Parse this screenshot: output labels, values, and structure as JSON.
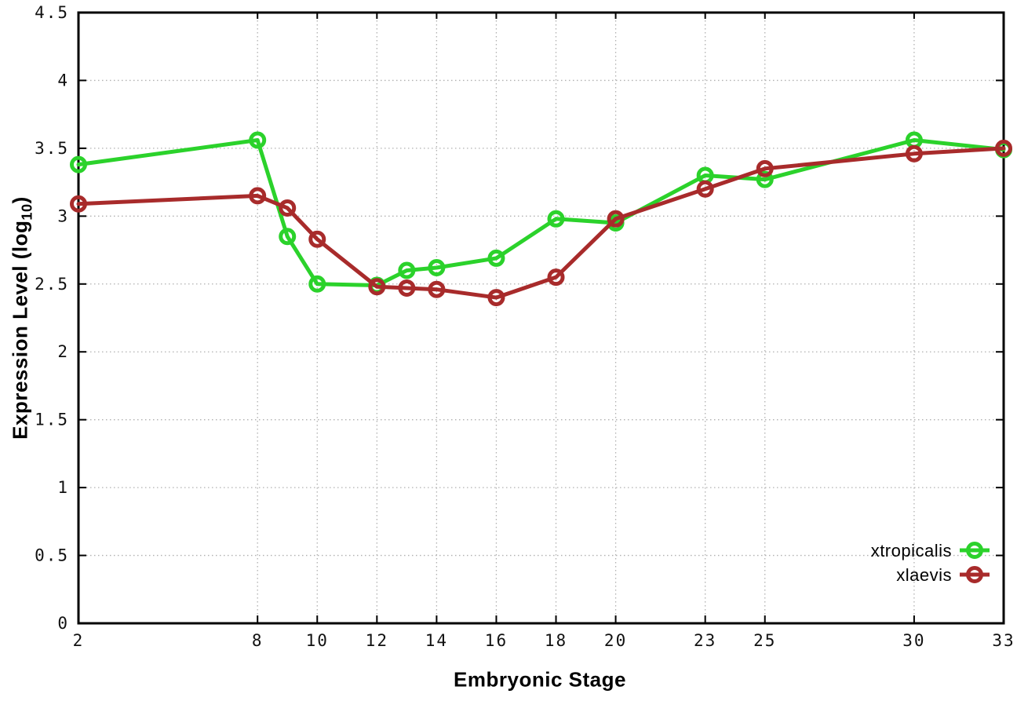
{
  "chart_data": {
    "type": "line",
    "title": "",
    "xlabel": "Embryonic Stage",
    "ylabel": {
      "prefix": "Expression Level (log",
      "subscript": "10",
      "suffix": ")"
    },
    "xlim": [
      2,
      33
    ],
    "ylim": [
      0,
      4.5
    ],
    "x_ticks": [
      2,
      8,
      10,
      12,
      14,
      16,
      18,
      20,
      23,
      25,
      30,
      33
    ],
    "x_tick_labels": [
      "2",
      "8",
      "10",
      "12",
      "14",
      "16",
      "18",
      "20",
      "23",
      "25",
      "30",
      "33"
    ],
    "y_ticks": [
      0,
      0.5,
      1,
      1.5,
      2,
      2.5,
      3,
      3.5,
      4,
      4.5
    ],
    "y_tick_labels": [
      "0",
      "0.5",
      "1",
      "1.5",
      "2",
      "2.5",
      "3",
      "3.5",
      "4",
      "4.5"
    ],
    "grid": true,
    "legend_position": "inside-bottom-right",
    "marker_style": "open-circle",
    "colors": {
      "grid": "#b0b0b0",
      "axis": "#000000",
      "text": "#111111"
    },
    "series": [
      {
        "name": "xtropicalis",
        "color": "#2bd22b",
        "points": [
          [
            2,
            3.38
          ],
          [
            8,
            3.56
          ],
          [
            9,
            2.85
          ],
          [
            10,
            2.5
          ],
          [
            12,
            2.49
          ],
          [
            13,
            2.6
          ],
          [
            14,
            2.62
          ],
          [
            16,
            2.69
          ],
          [
            18,
            2.98
          ],
          [
            20,
            2.95
          ],
          [
            23,
            3.3
          ],
          [
            25,
            3.27
          ],
          [
            30,
            3.56
          ],
          [
            33,
            3.49
          ]
        ]
      },
      {
        "name": "xlaevis",
        "color": "#a82b2b",
        "points": [
          [
            2,
            3.09
          ],
          [
            8,
            3.15
          ],
          [
            9,
            3.06
          ],
          [
            10,
            2.83
          ],
          [
            12,
            2.48
          ],
          [
            13,
            2.47
          ],
          [
            14,
            2.46
          ],
          [
            16,
            2.4
          ],
          [
            18,
            2.55
          ],
          [
            20,
            2.98
          ],
          [
            23,
            3.2
          ],
          [
            25,
            3.35
          ],
          [
            30,
            3.46
          ],
          [
            33,
            3.5
          ]
        ]
      }
    ]
  }
}
